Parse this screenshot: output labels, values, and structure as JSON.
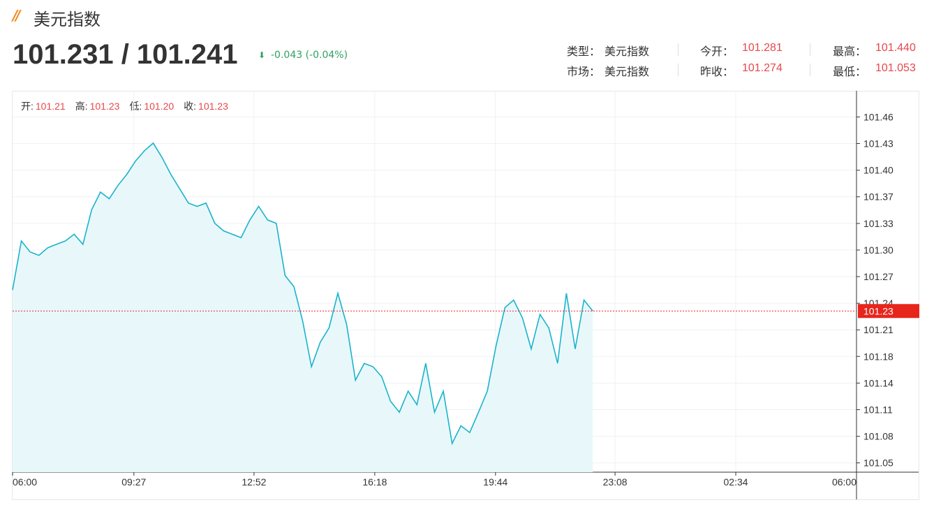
{
  "header": {
    "title": "美元指数",
    "price": "101.231 / 101.241",
    "change": "-0.043 (-0.04%)",
    "info": [
      [
        {
          "label": "类型：",
          "value": "美元指数"
        },
        {
          "label": "今开：",
          "value": "101.281"
        },
        {
          "label": "最高：",
          "value": "101.440"
        }
      ],
      [
        {
          "label": "市场：",
          "value": "美元指数"
        },
        {
          "label": "昨收：",
          "value": "101.274"
        },
        {
          "label": "最低：",
          "value": "101.053"
        }
      ]
    ]
  },
  "ohlc": [
    {
      "label": "开:",
      "value": "101.21"
    },
    {
      "label": "高:",
      "value": "101.23"
    },
    {
      "label": "低:",
      "value": "101.20"
    },
    {
      "label": "收:",
      "value": "101.23"
    }
  ],
  "chart_data": {
    "type": "line",
    "x": [
      "06:00",
      "06:15",
      "06:30",
      "06:45",
      "07:00",
      "07:15",
      "07:30",
      "07:45",
      "08:00",
      "08:15",
      "08:30",
      "08:45",
      "09:00",
      "09:15",
      "09:30",
      "09:45",
      "10:00",
      "10:15",
      "10:30",
      "10:45",
      "11:00",
      "11:15",
      "11:30",
      "11:45",
      "12:00",
      "12:15",
      "12:30",
      "12:45",
      "13:00",
      "13:15",
      "13:30",
      "13:45",
      "14:00",
      "14:15",
      "14:30",
      "14:45",
      "15:00",
      "15:15",
      "15:30",
      "15:45",
      "16:00",
      "16:15",
      "16:30",
      "16:45",
      "17:00",
      "17:15",
      "17:30",
      "17:45",
      "18:00",
      "18:15",
      "18:30",
      "18:45",
      "19:00",
      "19:15",
      "19:30",
      "19:45",
      "20:00",
      "20:15",
      "20:30",
      "20:45",
      "21:00",
      "21:15",
      "21:30",
      "21:45",
      "22:00",
      "22:15",
      "22:30"
    ],
    "series": [
      {
        "color": "#1ab3cc",
        "values": [
          101.255,
          101.313,
          101.3,
          101.296,
          101.305,
          101.309,
          101.313,
          101.321,
          101.309,
          101.35,
          101.371,
          101.363,
          101.379,
          101.392,
          101.408,
          101.42,
          101.429,
          101.412,
          101.392,
          101.375,
          101.358,
          101.354,
          101.358,
          101.334,
          101.325,
          101.321,
          101.317,
          101.338,
          101.354,
          101.338,
          101.334,
          101.272,
          101.259,
          101.218,
          101.164,
          101.193,
          101.21,
          101.251,
          101.214,
          101.148,
          101.168,
          101.164,
          101.152,
          101.123,
          101.11,
          101.135,
          101.119,
          101.168,
          101.11,
          101.135,
          101.073,
          101.094,
          101.086,
          101.11,
          101.135,
          101.189,
          101.234,
          101.243,
          101.222,
          101.185,
          101.226,
          101.21,
          101.168,
          101.251,
          101.185,
          101.243,
          101.23
        ]
      }
    ],
    "xticks": [
      "06:00",
      "09:27",
      "12:52",
      "16:18",
      "19:44",
      "23:08",
      "02:34",
      "06:00"
    ],
    "ylim": [
      101.039,
      101.491
    ],
    "yticks": [
      {
        "value": 101.05,
        "label": "101.05"
      },
      {
        "value": 101.0815,
        "label": "101.08"
      },
      {
        "value": 101.1131,
        "label": "101.11"
      },
      {
        "value": 101.1446,
        "label": "101.14"
      },
      {
        "value": 101.1762,
        "label": "101.18"
      },
      {
        "value": 101.2077,
        "label": "101.21"
      },
      {
        "value": 101.2392,
        "label": "101.24"
      },
      {
        "value": 101.2708,
        "label": "101.27"
      },
      {
        "value": 101.3023,
        "label": "101.30"
      },
      {
        "value": 101.3338,
        "label": "101.33"
      },
      {
        "value": 101.3654,
        "label": "101.37"
      },
      {
        "value": 101.3969,
        "label": "101.40"
      },
      {
        "value": 101.4285,
        "label": "101.43"
      },
      {
        "value": 101.46,
        "label": "101.46"
      }
    ],
    "current": 101.23,
    "current_color": "#e8251c",
    "fill_color": "#e8f8fa",
    "grid": true
  }
}
